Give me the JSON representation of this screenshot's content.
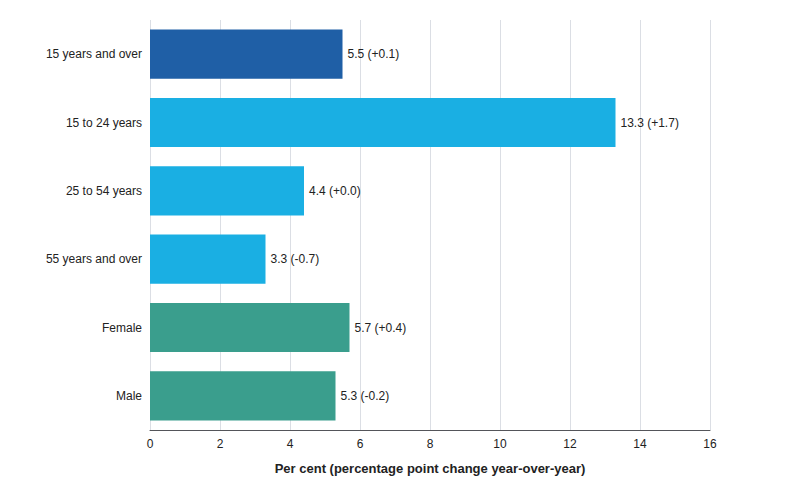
{
  "chart_data": {
    "type": "bar",
    "orientation": "horizontal",
    "categories": [
      "15 years and over",
      "15 to 24 years",
      "25 to 54 years",
      "55 years and over",
      "Female",
      "Male"
    ],
    "values": [
      5.5,
      13.3,
      4.4,
      3.3,
      5.7,
      5.3
    ],
    "value_labels": [
      "5.5 (+0.1)",
      "13.3 (+1.7)",
      "4.4 (+0.0)",
      "3.3 (-0.7)",
      "5.7 (+0.4)",
      "5.3 (-0.2)"
    ],
    "colors": [
      "#1F5FA6",
      "#1AAFE3",
      "#1AAFE3",
      "#1AAFE3",
      "#3A9E8D",
      "#3A9E8D"
    ],
    "xlabel": "Per cent (percentage point change year-over-year)",
    "xlim": [
      0,
      16
    ],
    "xticks": [
      0,
      2,
      4,
      6,
      8,
      10,
      12,
      14,
      16
    ],
    "grid": true,
    "data_labels": true
  }
}
